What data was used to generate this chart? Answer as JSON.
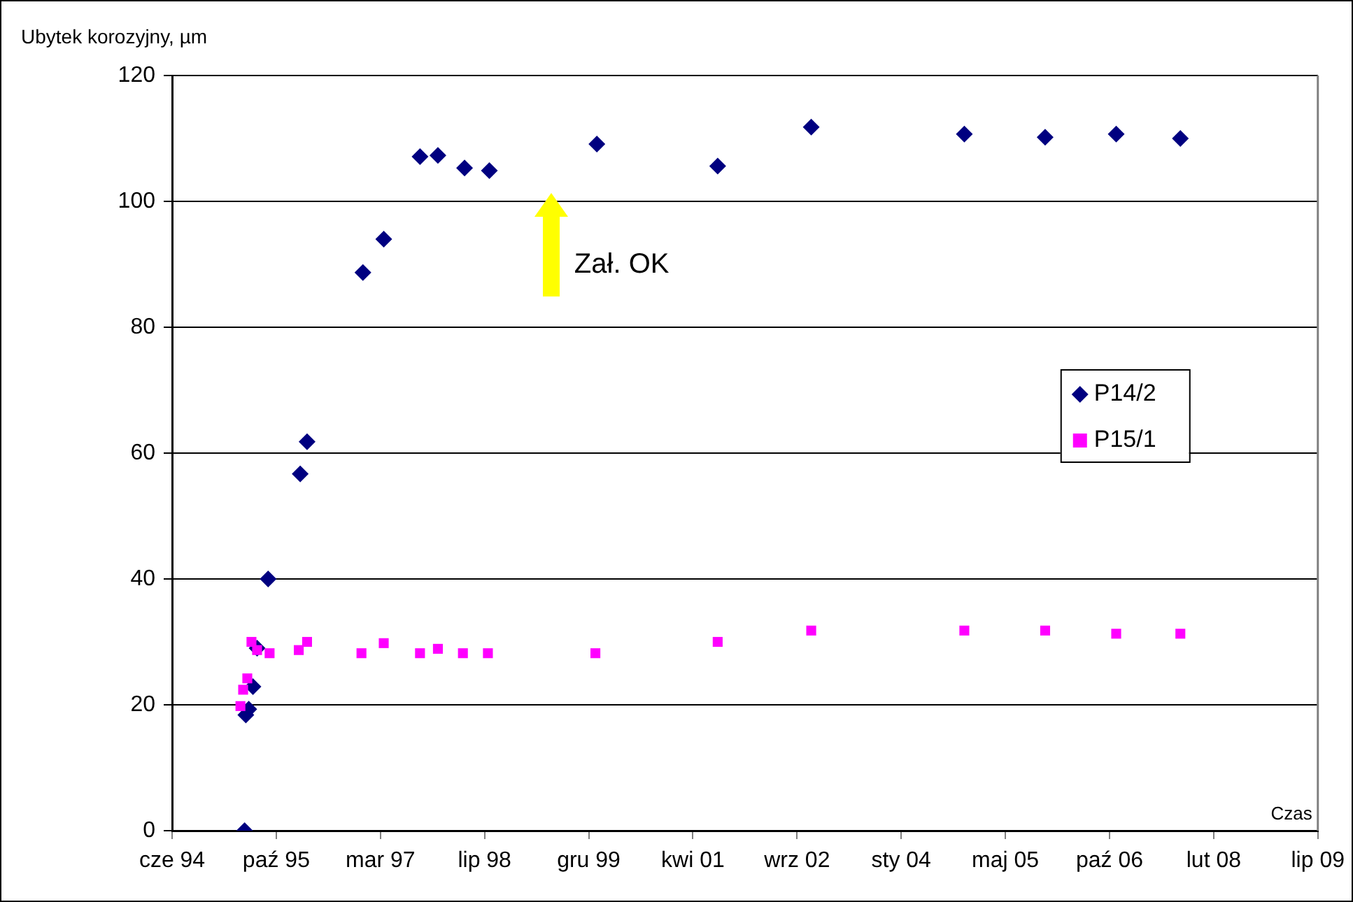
{
  "chart_data": {
    "type": "scatter",
    "xlabel": "Czas",
    "ylabel": "Ubytek korozyjny, µm",
    "annotations": [
      "Zał. OK"
    ],
    "xlim": [
      "1994-06-15",
      "2009-07-06"
    ],
    "xticks": [
      {
        "value": "1994-06-15",
        "label": "cze 94"
      },
      {
        "value": "1995-10-28",
        "label": "paź 95"
      },
      {
        "value": "1997-03-11",
        "label": "mar 97"
      },
      {
        "value": "1998-07-24",
        "label": "lip 98"
      },
      {
        "value": "1999-12-06",
        "label": "gru 99"
      },
      {
        "value": "2001-04-19",
        "label": "kwi 01"
      },
      {
        "value": "2002-09-01",
        "label": "wrz 02"
      },
      {
        "value": "2004-01-14",
        "label": "sty 04"
      },
      {
        "value": "2005-05-28",
        "label": "maj 05"
      },
      {
        "value": "2006-10-10",
        "label": "paź 06"
      },
      {
        "value": "2008-02-22",
        "label": "lut 08"
      },
      {
        "value": "2009-07-06",
        "label": "lip 09"
      }
    ],
    "ylim": [
      0,
      120
    ],
    "yticks": [
      0,
      20,
      40,
      60,
      80,
      100,
      120
    ],
    "grid": "y",
    "legend": "right",
    "series": [
      {
        "name": "P14/2",
        "color": "#000080",
        "marker": "diamond",
        "x": [
          "1995-05-29",
          "1995-06-04",
          "1995-06-18",
          "1995-07-08",
          "1995-07-28",
          "1995-09-19",
          "1996-02-20",
          "1996-03-24",
          "1996-12-17",
          "1997-03-27",
          "1997-09-17",
          "1997-12-12",
          "1998-04-19",
          "1998-08-16",
          "2000-01-14",
          "2001-08-16",
          "2002-11-08",
          "2004-11-12",
          "2005-12-05",
          "2006-11-11",
          "2007-09-15"
        ],
        "values": [
          0,
          18.4,
          19.3,
          22.9,
          29,
          40,
          56.7,
          61.8,
          88.7,
          94,
          107.1,
          107.3,
          105.3,
          104.9,
          109.1,
          105.6,
          111.8,
          110.7,
          110.2,
          110.7,
          110
        ]
      },
      {
        "name": "P15/1",
        "color": "#ff00ff",
        "marker": "square",
        "x": [
          "1995-05-09",
          "1995-05-22",
          "1995-06-11",
          "1995-07-01",
          "1995-07-28",
          "1995-09-26",
          "1996-02-13",
          "1996-03-24",
          "1996-12-10",
          "1997-03-27",
          "1997-09-17",
          "1997-12-12",
          "1998-04-11",
          "1998-08-09",
          "2000-01-07",
          "2001-08-16",
          "2002-11-08",
          "2004-11-12",
          "2005-12-05",
          "2006-11-11",
          "2007-09-15"
        ],
        "values": [
          19.8,
          22.4,
          24.2,
          30,
          28.7,
          28.2,
          28.7,
          30,
          28.2,
          29.8,
          28.2,
          28.9,
          28.2,
          28.2,
          28.2,
          30,
          31.8,
          31.8,
          31.8,
          31.3,
          31.3
        ]
      }
    ]
  }
}
